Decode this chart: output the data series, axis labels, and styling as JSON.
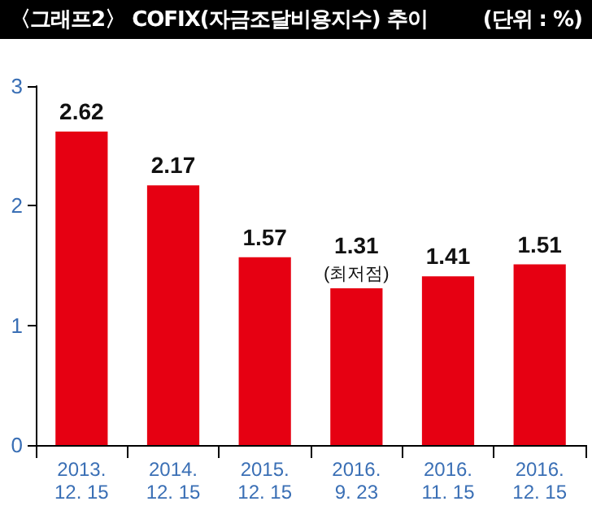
{
  "chart_data": {
    "type": "bar",
    "title": "〈그래프2〉 COFIX(자금조달비용지수) 추이",
    "subtitle": "(단위 : %)",
    "categories": [
      "2013.\n12. 15",
      "2014.\n12. 15",
      "2015.\n12. 15",
      "2016.\n9. 23",
      "2016.\n11. 15",
      "2016.\n12. 15"
    ],
    "values": [
      2.62,
      2.17,
      1.57,
      1.31,
      1.41,
      1.51
    ],
    "color": "#e60012",
    "ylim": [
      0,
      3
    ],
    "yticks": [
      0,
      1,
      2,
      3
    ],
    "grid": false,
    "data_labels": true,
    "annotations": [
      {
        "text": "(최저점)",
        "x": "2016.\n9. 23",
        "y": 1.31
      }
    ]
  }
}
